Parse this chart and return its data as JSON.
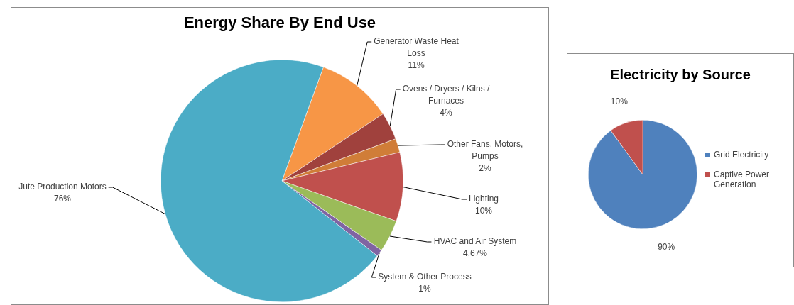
{
  "chart_data": [
    {
      "type": "pie",
      "title": "Energy Share By End Use",
      "categories": [
        "Generator Waste Heat Loss",
        "Ovens / Dryers / Kilns / Furnaces",
        "Other Fans, Motors, Pumps",
        "Lighting",
        "HVAC and Air System",
        "System & Other Process",
        "Jute Production Motors"
      ],
      "values": [
        11,
        4,
        2,
        10,
        4.67,
        1,
        76
      ],
      "colors": [
        "#f79646",
        "#a0413d",
        "#d07d38",
        "#c0504d",
        "#9bbb59",
        "#8064a2",
        "#4bacc6"
      ],
      "value_labels": [
        "11%",
        "4%",
        "2%",
        "10%",
        "4.67%",
        "1%",
        "76%"
      ],
      "legend": false
    },
    {
      "type": "pie",
      "title": "Electricity by Source",
      "categories": [
        "Grid Electricity",
        "Captive Power Generation"
      ],
      "values": [
        90,
        10
      ],
      "colors": [
        "#4f81bd",
        "#c0504d"
      ],
      "value_labels": [
        "90%",
        "10%"
      ],
      "legend": "right"
    }
  ]
}
